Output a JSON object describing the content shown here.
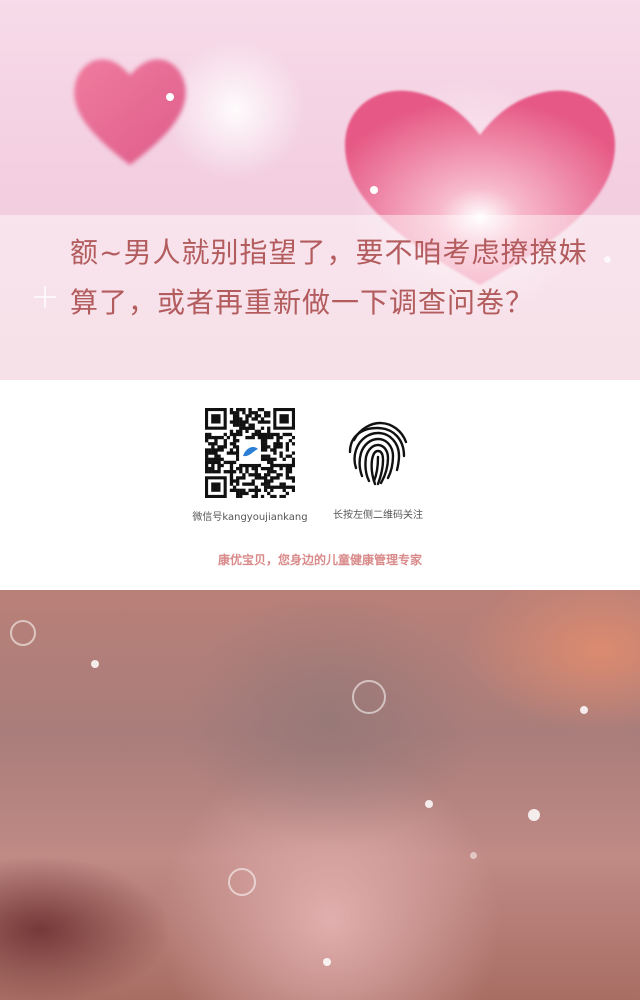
{
  "hero": {
    "question": "额~男人就别指望了，要不咱考虑撩撩妹算了，或者再重新做一下调查问卷？"
  },
  "qr": {
    "caption": "微信号kangyoujiankang"
  },
  "fingerprint": {
    "caption": "长按左侧二维码关注"
  },
  "footer": {
    "slogan": "康优宝贝，您身边的儿童健康管理专家"
  },
  "colors": {
    "question_text": "#b35c5e",
    "slogan_text": "#d98b8b",
    "heart": "#e9547d"
  },
  "icons": [
    "heart-icon",
    "qr-code-icon",
    "fingerprint-icon"
  ]
}
